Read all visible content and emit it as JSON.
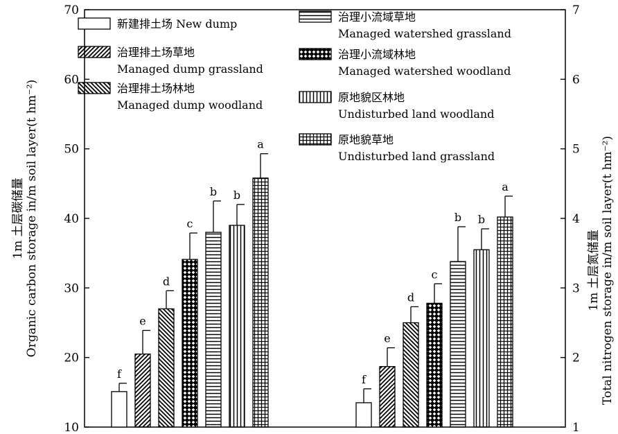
{
  "chart_data": {
    "type": "bar",
    "groups": [
      "carbon",
      "nitrogen"
    ],
    "series": [
      {
        "name_zh": "新建排土场",
        "name_en": "New dump",
        "pattern": "empty",
        "values": [
          15.1,
          1.35
        ],
        "errors": [
          1.2,
          0.2
        ],
        "letters": [
          "f",
          "f"
        ]
      },
      {
        "name_zh": "治理排土场草地",
        "name_en": "Managed dump grassland",
        "pattern": "diag-right",
        "values": [
          20.5,
          1.87
        ],
        "errors": [
          3.4,
          0.27
        ],
        "letters": [
          "e",
          "e"
        ]
      },
      {
        "name_zh": "治理排土场林地",
        "name_en": "Managed dump woodland",
        "pattern": "diag-left",
        "values": [
          27.0,
          2.5
        ],
        "errors": [
          2.6,
          0.23
        ],
        "letters": [
          "d",
          "d"
        ]
      },
      {
        "name_zh": "治理小流域林地",
        "name_en": "Managed watershed woodland",
        "pattern": "cross",
        "values": [
          34.1,
          2.78
        ],
        "errors": [
          3.8,
          0.28
        ],
        "letters": [
          "c",
          "c"
        ]
      },
      {
        "name_zh": "治理小流域草地",
        "name_en": "Managed watershed grassland",
        "pattern": "horizontal",
        "values": [
          38.0,
          3.38
        ],
        "errors": [
          4.5,
          0.5
        ],
        "letters": [
          "b",
          "b"
        ]
      },
      {
        "name_zh": "原地貌区林地",
        "name_en": "Undisturbed land woodland",
        "pattern": "vertical",
        "values": [
          39.0,
          3.55
        ],
        "errors": [
          3.0,
          0.3
        ],
        "letters": [
          "b",
          "b"
        ]
      },
      {
        "name_zh": "原地貌草地",
        "name_en": "Undisturbed land grassland",
        "pattern": "grid",
        "values": [
          45.8,
          4.02
        ],
        "errors": [
          3.5,
          0.3
        ],
        "letters": [
          "a",
          "a"
        ]
      }
    ],
    "legend_order": [
      0,
      4,
      1,
      3,
      2,
      5,
      6
    ],
    "y_left": {
      "label_line1": "1m 土层碳储量",
      "label_line2": "Organic carbon storage in/m soil layer(t hm⁻²)",
      "min": 10,
      "max": 70,
      "ticks": [
        10,
        20,
        30,
        40,
        50,
        60,
        70
      ]
    },
    "y_right": {
      "label_line1": "1m 土层氮储量",
      "label_line2": "Total nitrogen storage in/m soil layer(t hm⁻²)",
      "min": 1,
      "max": 7,
      "ticks": [
        1,
        2,
        3,
        4,
        5,
        6,
        7
      ]
    },
    "legend_placement": "top",
    "grid": false
  }
}
